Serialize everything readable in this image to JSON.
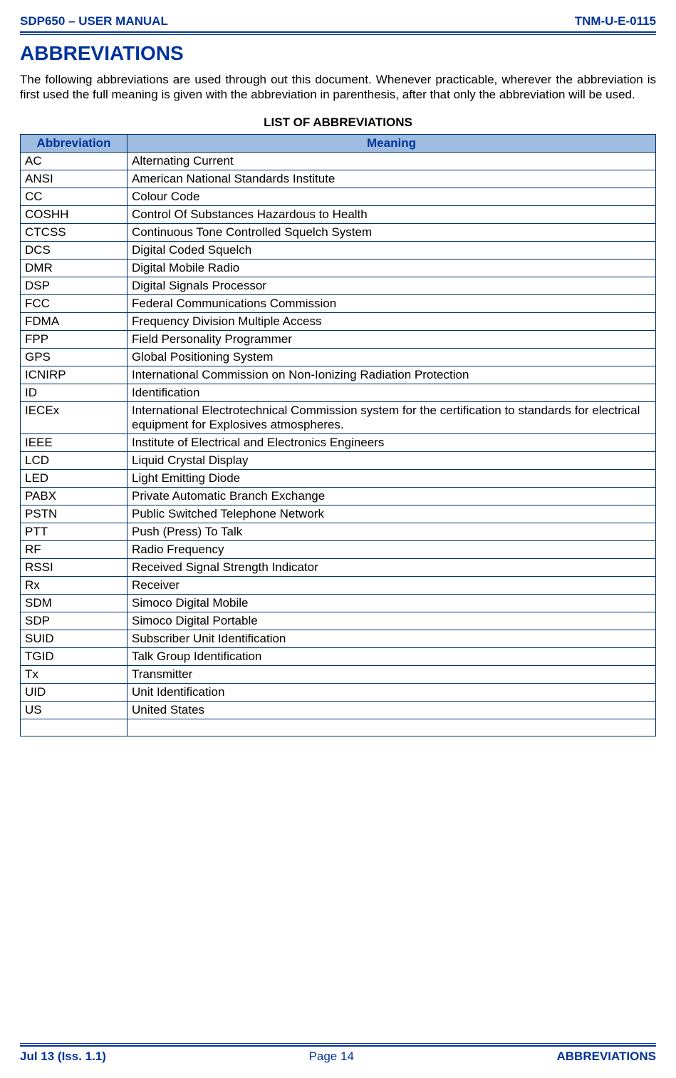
{
  "header": {
    "left": "SDP650 – USER MANUAL",
    "right": "TNM-U-E-0115"
  },
  "section_title": "ABBREVIATIONS",
  "intro": "The following abbreviations are used through out this document.  Whenever practicable, wherever the abbreviation is first used the full meaning is given with the abbreviation in parenthesis, after that only the abbreviation will be used.",
  "table_title": "LIST OF ABBREVIATIONS",
  "columns": {
    "abbr": "Abbreviation",
    "meaning": "Meaning"
  },
  "rows": [
    {
      "abbr": "AC",
      "meaning": "Alternating Current"
    },
    {
      "abbr": "ANSI",
      "meaning": "American National Standards Institute"
    },
    {
      "abbr": "CC",
      "meaning": "Colour Code"
    },
    {
      "abbr": "COSHH",
      "meaning": "Control Of Substances Hazardous to Health"
    },
    {
      "abbr": "CTCSS",
      "meaning": "Continuous Tone Controlled Squelch System"
    },
    {
      "abbr": "DCS",
      "meaning": "Digital Coded Squelch"
    },
    {
      "abbr": "DMR",
      "meaning": "Digital Mobile Radio"
    },
    {
      "abbr": "DSP",
      "meaning": "Digital Signals Processor"
    },
    {
      "abbr": "FCC",
      "meaning": "Federal Communications Commission"
    },
    {
      "abbr": "FDMA",
      "meaning": "Frequency Division Multiple Access"
    },
    {
      "abbr": "FPP",
      "meaning": "Field Personality Programmer"
    },
    {
      "abbr": "GPS",
      "meaning": "Global Positioning System"
    },
    {
      "abbr": "ICNIRP",
      "meaning": "International Commission on Non-Ionizing Radiation Protection"
    },
    {
      "abbr": "ID",
      "meaning": "Identification"
    },
    {
      "abbr": "IECEx",
      "meaning": "International Electrotechnical Commission system for the certification to standards for electrical equipment for Explosives atmospheres."
    },
    {
      "abbr": "IEEE",
      "meaning": "Institute of Electrical and Electronics Engineers"
    },
    {
      "abbr": "LCD",
      "meaning": "Liquid Crystal Display"
    },
    {
      "abbr": "LED",
      "meaning": "Light Emitting Diode"
    },
    {
      "abbr": "PABX",
      "meaning": "Private Automatic Branch Exchange"
    },
    {
      "abbr": "PSTN",
      "meaning": "Public Switched Telephone Network"
    },
    {
      "abbr": "PTT",
      "meaning": "Push (Press) To Talk"
    },
    {
      "abbr": "RF",
      "meaning": "Radio Frequency"
    },
    {
      "abbr": "RSSI",
      "meaning": "Received Signal Strength Indicator"
    },
    {
      "abbr": "Rx",
      "meaning": "Receiver"
    },
    {
      "abbr": "SDM",
      "meaning": "Simoco Digital Mobile"
    },
    {
      "abbr": "SDP",
      "meaning": "Simoco Digital Portable"
    },
    {
      "abbr": "SUID",
      "meaning": "Subscriber Unit Identification"
    },
    {
      "abbr": "TGID",
      "meaning": "Talk Group Identification"
    },
    {
      "abbr": "Tx",
      "meaning": "Transmitter"
    },
    {
      "abbr": "UID",
      "meaning": "Unit Identification"
    },
    {
      "abbr": "US",
      "meaning": "United States"
    }
  ],
  "footer": {
    "left": "Jul 13 (Iss. 1.1)",
    "center_prefix": "Page ",
    "center_num": "14",
    "right": "ABBREVIATIONS"
  },
  "colors": {
    "brand_blue": "#003399",
    "header_bg": "#9ebde0",
    "border": "#003366",
    "text": "#000000",
    "background": "#ffffff"
  }
}
